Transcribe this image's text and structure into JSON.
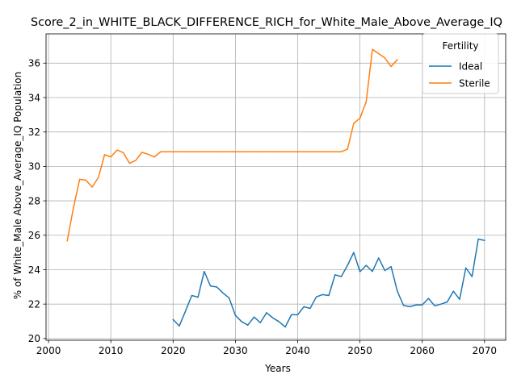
{
  "chart_data": {
    "type": "line",
    "title": "Score_2_in_WHITE_BLACK_DIFFERENCE_RICH_for_White_Male_Above_Average_IQ",
    "xlabel": "Years",
    "ylabel": "% of White_Male Above_Average_IQ Population",
    "xlim": [
      1999.6,
      2073.4
    ],
    "ylim": [
      19.9,
      37.7
    ],
    "xticks": [
      2000,
      2010,
      2020,
      2030,
      2040,
      2050,
      2060,
      2070
    ],
    "yticks": [
      20,
      22,
      24,
      26,
      28,
      30,
      32,
      34,
      36
    ],
    "grid": true,
    "legend": {
      "title": "Fertility",
      "position": "top-right"
    },
    "series": [
      {
        "name": "Ideal",
        "color": "#1f77b4",
        "x": [
          2020,
          2021,
          2022,
          2023,
          2024,
          2025,
          2026,
          2027,
          2028,
          2029,
          2030,
          2031,
          2032,
          2033,
          2034,
          2035,
          2036,
          2037,
          2038,
          2039,
          2040,
          2041,
          2042,
          2043,
          2044,
          2045,
          2046,
          2047,
          2048,
          2049,
          2050,
          2051,
          2052,
          2053,
          2054,
          2055,
          2056,
          2057,
          2058,
          2059,
          2060,
          2061,
          2062,
          2063,
          2064,
          2065,
          2066,
          2067,
          2068,
          2069,
          2070
        ],
        "y": [
          21.1,
          20.73,
          21.6,
          22.5,
          22.4,
          23.9,
          23.05,
          23.0,
          22.65,
          22.35,
          21.35,
          20.98,
          20.78,
          21.25,
          20.92,
          21.5,
          21.2,
          20.98,
          20.67,
          21.38,
          21.38,
          21.85,
          21.75,
          22.42,
          22.55,
          22.5,
          23.7,
          23.6,
          24.25,
          25.0,
          23.88,
          24.25,
          23.9,
          24.68,
          23.95,
          24.18,
          22.75,
          21.92,
          21.85,
          21.95,
          21.95,
          22.33,
          21.9,
          22.0,
          22.12,
          22.75,
          22.28,
          24.1,
          23.6,
          25.78,
          25.7
        ]
      },
      {
        "name": "Sterile",
        "color": "#ff7f0e",
        "x": [
          2003,
          2004,
          2005,
          2006,
          2007,
          2008,
          2009,
          2010,
          2011,
          2012,
          2013,
          2014,
          2015,
          2016,
          2017,
          2018,
          2019,
          2020,
          2021,
          2022,
          2023,
          2024,
          2025,
          2026,
          2027,
          2028,
          2029,
          2030,
          2031,
          2032,
          2033,
          2034,
          2035,
          2036,
          2037,
          2038,
          2039,
          2040,
          2041,
          2042,
          2043,
          2044,
          2045,
          2046,
          2047,
          2048,
          2049,
          2050,
          2051,
          2052,
          2053,
          2054,
          2055,
          2056
        ],
        "y": [
          25.68,
          27.6,
          29.25,
          29.2,
          28.8,
          29.35,
          30.68,
          30.55,
          30.95,
          30.8,
          30.18,
          30.35,
          30.82,
          30.7,
          30.55,
          30.85,
          30.85,
          30.85,
          30.85,
          30.85,
          30.85,
          30.85,
          30.85,
          30.85,
          30.85,
          30.85,
          30.85,
          30.85,
          30.85,
          30.85,
          30.85,
          30.85,
          30.85,
          30.85,
          30.85,
          30.85,
          30.85,
          30.85,
          30.85,
          30.85,
          30.85,
          30.85,
          30.85,
          30.85,
          30.85,
          31.0,
          32.5,
          32.8,
          33.75,
          36.8,
          36.55,
          36.3,
          35.8,
          36.2
        ]
      }
    ]
  }
}
